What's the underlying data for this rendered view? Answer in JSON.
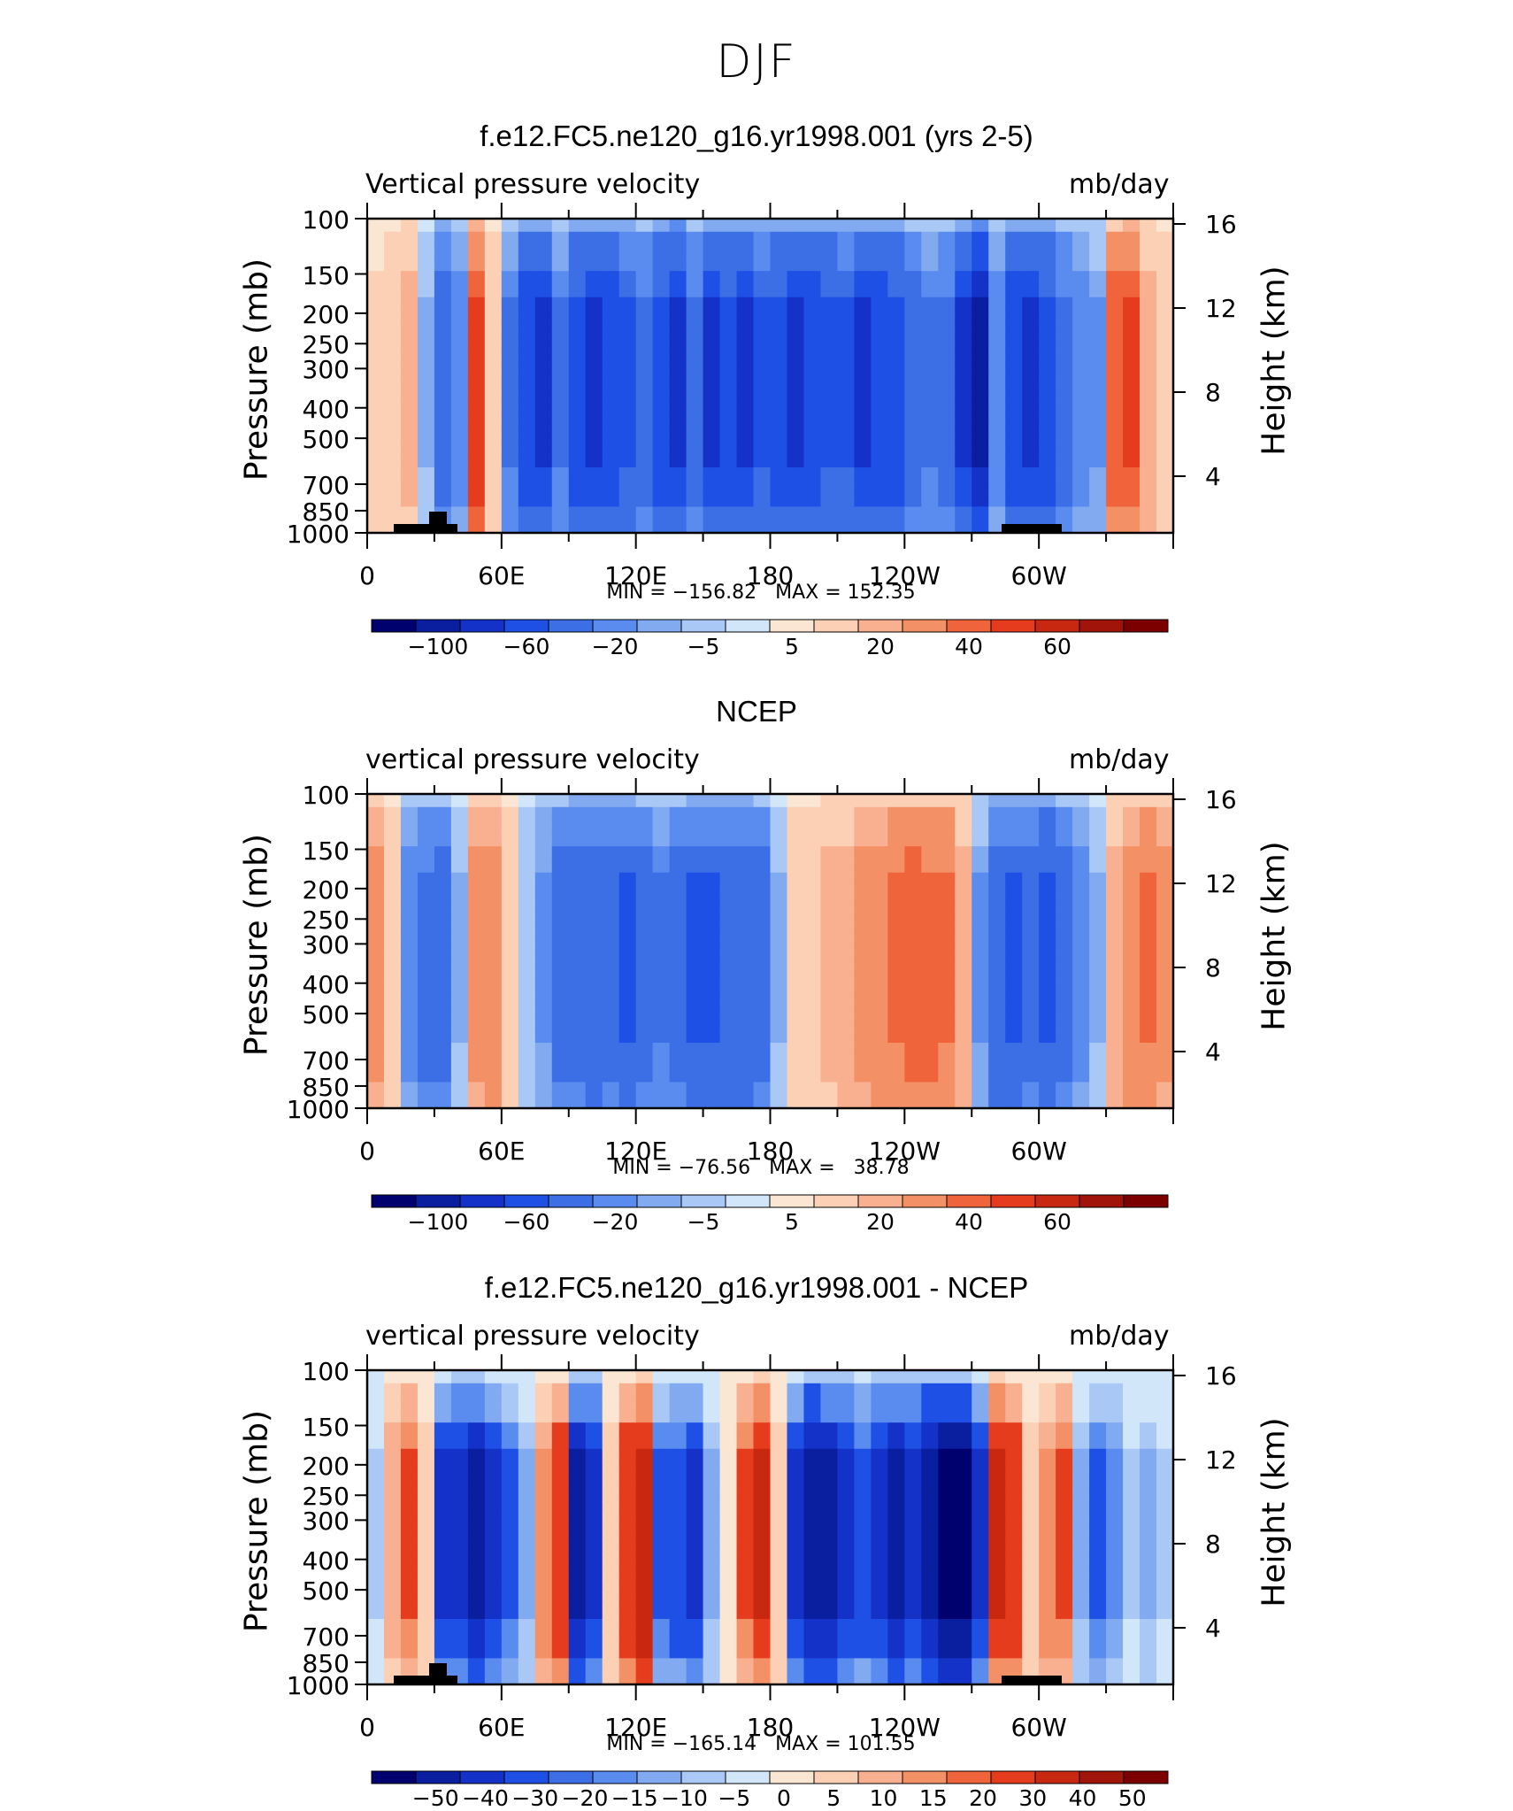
{
  "figure": {
    "title": "DJF",
    "colors": {
      "neg": [
        "#00006e",
        "#0a1ea0",
        "#1432c8",
        "#1e50e6",
        "#3c6ee6",
        "#5a8cf0",
        "#82aaf0",
        "#aac8f5",
        "#d2e6fa"
      ],
      "pos": [
        "#fae6d2",
        "#fcd0b4",
        "#f8b090",
        "#f49066",
        "#f0643c",
        "#e63c1e",
        "#c8280f",
        "#a0140a",
        "#7d0000"
      ]
    }
  },
  "chart_data": [
    {
      "type": "heatmap",
      "title": "f.e12.FC5.ne120_g16.yr1998.001 (yrs 2-5)",
      "variable": "Vertical pressure velocity",
      "units": "mb/day",
      "ylabel": "Pressure (mb)",
      "y2label": "Height (km)",
      "x_ticks": [
        "0",
        "60E",
        "120E",
        "180",
        "120W",
        "60W"
      ],
      "y_ticks": [
        "100",
        "150",
        "200",
        "250",
        "300",
        "400",
        "500",
        "700",
        "850",
        "1000"
      ],
      "y2_ticks": [
        "16",
        "12",
        "8",
        "4"
      ],
      "min_max": "MIN = −156.82   MAX = 152.35",
      "colorbar_labels": [
        "−100",
        "−60",
        "−20",
        "−5",
        "5",
        "20",
        "40",
        "60"
      ],
      "xlim": [
        0,
        360
      ],
      "ylim": [
        1000,
        100
      ],
      "column_values": [
        2,
        4,
        8,
        -5,
        -35,
        -15,
        40,
        5,
        -20,
        -55,
        -60,
        -20,
        -50,
        -65,
        -55,
        -40,
        -25,
        -50,
        -70,
        -25,
        -60,
        -50,
        -60,
        -40,
        -50,
        -60,
        -55,
        -45,
        -40,
        -60,
        -55,
        -50,
        -30,
        -20,
        -25,
        -60,
        -90,
        -15,
        -55,
        -60,
        -50,
        -25,
        -15,
        -10,
        30,
        35,
        10,
        3
      ],
      "topography": true
    },
    {
      "type": "heatmap",
      "title": "NCEP",
      "variable": "vertical pressure velocity",
      "units": "mb/day",
      "ylabel": "Pressure (mb)",
      "y2label": "Height (km)",
      "x_ticks": [
        "0",
        "60E",
        "120E",
        "180",
        "120W",
        "60W"
      ],
      "y_ticks": [
        "100",
        "150",
        "200",
        "250",
        "300",
        "400",
        "500",
        "700",
        "850",
        "1000"
      ],
      "y2_ticks": [
        "16",
        "12",
        "8",
        "4"
      ],
      "min_max": "MIN = −76.56   MAX =   38.78",
      "colorbar_labels": [
        "−100",
        "−60",
        "−20",
        "−5",
        "5",
        "20",
        "40",
        "60"
      ],
      "xlim": [
        0,
        360
      ],
      "ylim": [
        1000,
        100
      ],
      "column_values": [
        15,
        5,
        -15,
        -25,
        -30,
        -5,
        18,
        20,
        3,
        -3,
        -12,
        -28,
        -35,
        -38,
        -35,
        -40,
        -30,
        -20,
        -30,
        -42,
        -42,
        -38,
        -38,
        -30,
        -5,
        3,
        5,
        8,
        10,
        14,
        20,
        25,
        28,
        26,
        24,
        10,
        -10,
        -38,
        -42,
        -35,
        -45,
        -30,
        -15,
        -5,
        10,
        20,
        25,
        18
      ],
      "topography": false
    },
    {
      "type": "heatmap",
      "title": "f.e12.FC5.ne120_g16.yr1998.001 - NCEP",
      "variable": "vertical pressure velocity",
      "units": "mb/day",
      "ylabel": "Pressure (mb)",
      "y2label": "Height (km)",
      "x_ticks": [
        "0",
        "60E",
        "120E",
        "180",
        "120W",
        "60W"
      ],
      "y_ticks": [
        "100",
        "150",
        "200",
        "250",
        "300",
        "400",
        "500",
        "700",
        "850",
        "1000"
      ],
      "y2_ticks": [
        "16",
        "12",
        "8",
        "4"
      ],
      "min_max": "MIN = −165.14   MAX = 101.55",
      "colorbar_labels": [
        "−50",
        "−40",
        "−30",
        "−20",
        "−15",
        "−10",
        "−5",
        "0",
        "5",
        "10",
        "15",
        "20",
        "30",
        "40",
        "50"
      ],
      "xlim": [
        0,
        360
      ],
      "ylim": [
        1000,
        100
      ],
      "column_values": [
        -5,
        15,
        25,
        10,
        -30,
        -35,
        -40,
        -30,
        -20,
        -10,
        20,
        30,
        -40,
        -35,
        10,
        30,
        40,
        -20,
        -25,
        -30,
        -10,
        5,
        25,
        35,
        10,
        -30,
        -45,
        -40,
        -35,
        -25,
        -35,
        -40,
        -35,
        -45,
        -55,
        -60,
        -30,
        35,
        30,
        10,
        20,
        25,
        -10,
        -20,
        -15,
        -5,
        -10,
        -5
      ],
      "topography": true
    }
  ]
}
